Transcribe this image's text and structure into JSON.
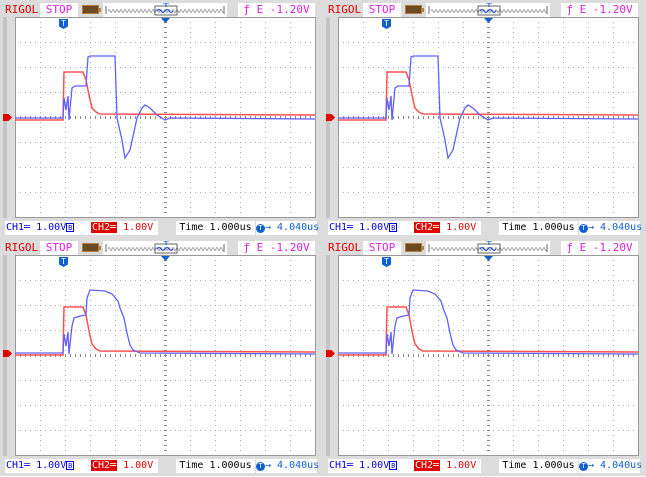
{
  "colors": {
    "ch1": "#6060ff",
    "ch2": "#ff5050",
    "brand": "#e00000",
    "status": "#e020e0",
    "offset": "#1060d0"
  },
  "scale": {
    "time_per_div_us": 1.0,
    "volts_per_div": 1.0,
    "h_divs": 12,
    "v_divs": 8
  },
  "panels": [
    {
      "header": {
        "brand": "RIGOL",
        "state": "STOP",
        "trigger": "ƒ E -1.20V"
      },
      "footer": {
        "ch1_label": "CH1═",
        "ch1_scale": "1.00V",
        "ch2_label": "CH2═",
        "ch2_scale": "1.00V",
        "time": "Time 1.000us",
        "offset": "→ 4.040us"
      },
      "trace_set": "A"
    },
    {
      "header": {
        "brand": "RIGOL",
        "state": "STOP",
        "trigger": "ƒ E -1.20V"
      },
      "footer": {
        "ch1_label": "CH1═",
        "ch1_scale": "1.00V",
        "ch2_label": "CH2═",
        "ch2_scale": "1.00V",
        "time": "Time 1.000us",
        "offset": "→ 4.040us"
      },
      "trace_set": "A"
    },
    {
      "header": {
        "brand": "RIGOL",
        "state": "STOP",
        "trigger": "ƒ E -1.20V"
      },
      "footer": {
        "ch1_label": "CH1═",
        "ch1_scale": "1.00V",
        "ch2_label": "CH2═",
        "ch2_scale": "1.00V",
        "time": "Time 1.000us",
        "offset": "→ 4.040us"
      },
      "trace_set": "B"
    },
    {
      "header": {
        "brand": "RIGOL",
        "state": "STOP",
        "trigger": "ƒ E -1.20V"
      },
      "footer": {
        "ch1_label": "CH1═",
        "ch1_scale": "1.00V",
        "ch2_label": "CH2═",
        "ch2_scale": "1.00V",
        "time": "Time 1.000us",
        "offset": "→ 4.040us"
      },
      "trace_set": "B"
    }
  ],
  "traces": {
    "A": {
      "ch1": [
        [
          -6,
          -0.04
        ],
        [
          -4.08,
          -0.04
        ],
        [
          -4.04,
          0.76
        ],
        [
          -3.96,
          0.28
        ],
        [
          -3.88,
          0.84
        ],
        [
          -3.84,
          -0.12
        ],
        [
          -3.72,
          1.16
        ],
        [
          -3.6,
          1.24
        ],
        [
          -3.16,
          1.24
        ],
        [
          -3.08,
          2.4
        ],
        [
          -3,
          2.44
        ],
        [
          -2,
          2.44
        ],
        [
          -1.92,
          -0.04
        ],
        [
          -1.72,
          -0.92
        ],
        [
          -1.6,
          -1.64
        ],
        [
          -1.4,
          -1.32
        ],
        [
          -1.12,
          -0.04
        ],
        [
          -0.92,
          0.36
        ],
        [
          -0.8,
          0.48
        ],
        [
          -0.6,
          0.36
        ],
        [
          -0.32,
          0.08
        ],
        [
          0,
          -0.12
        ],
        [
          0.2,
          -0.04
        ],
        [
          6,
          -0.08
        ]
      ],
      "ch2": [
        [
          -6,
          -0.12
        ],
        [
          -4.08,
          -0.12
        ],
        [
          -4.04,
          1.8
        ],
        [
          -3.28,
          1.8
        ],
        [
          -3.16,
          1.48
        ],
        [
          -3.04,
          0.88
        ],
        [
          -2.92,
          0.36
        ],
        [
          -2.76,
          0.2
        ],
        [
          -2.6,
          0.12
        ],
        [
          6,
          0.08
        ]
      ]
    },
    "B": {
      "ch1": [
        [
          -6,
          0.08
        ],
        [
          -4.08,
          0.08
        ],
        [
          -4.04,
          0.84
        ],
        [
          -3.96,
          0.36
        ],
        [
          -3.88,
          0.92
        ],
        [
          -3.84,
          0.04
        ],
        [
          -3.72,
          1.16
        ],
        [
          -3.64,
          1.48
        ],
        [
          -3.4,
          1.56
        ],
        [
          -3.16,
          1.6
        ],
        [
          -3.12,
          2.28
        ],
        [
          -3,
          2.6
        ],
        [
          -2.4,
          2.56
        ],
        [
          -2.12,
          2.44
        ],
        [
          -1.88,
          2.16
        ],
        [
          -1.8,
          1.88
        ],
        [
          -1.64,
          1.48
        ],
        [
          -1.52,
          0.88
        ],
        [
          -1.4,
          0.4
        ],
        [
          -1.28,
          0.2
        ],
        [
          -1,
          0.08
        ],
        [
          6,
          0.04
        ]
      ],
      "ch2": [
        [
          -6,
          0
        ],
        [
          -4.08,
          0
        ],
        [
          -4.04,
          1.92
        ],
        [
          -3.28,
          1.92
        ],
        [
          -3.16,
          1.6
        ],
        [
          -3.04,
          0.96
        ],
        [
          -2.92,
          0.44
        ],
        [
          -2.76,
          0.24
        ],
        [
          -2.6,
          0.16
        ],
        [
          6,
          0.12
        ]
      ]
    }
  }
}
